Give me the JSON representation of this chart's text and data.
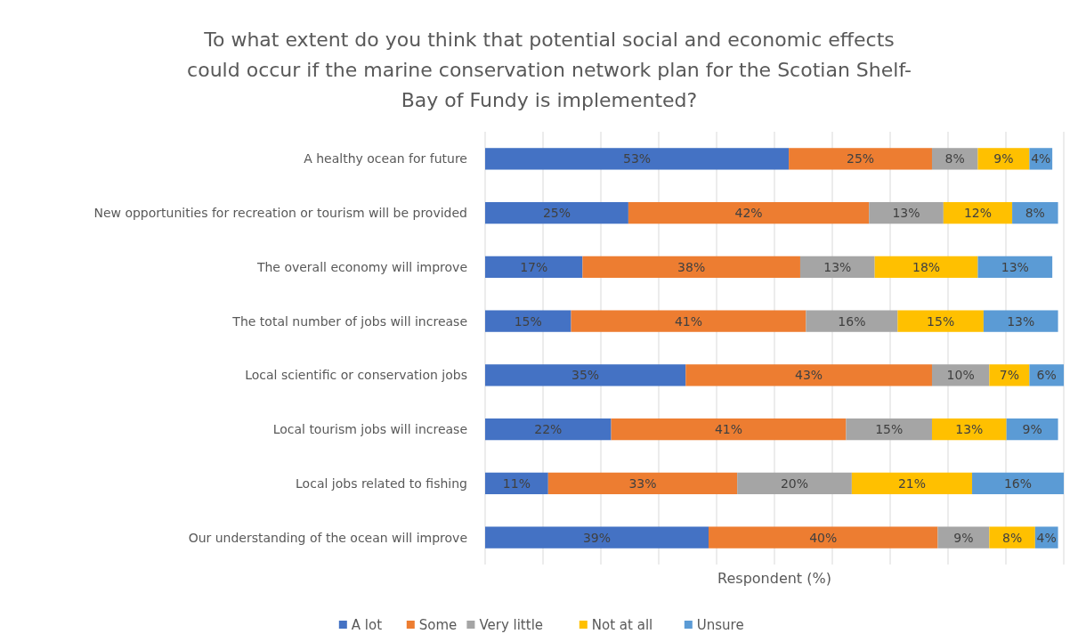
{
  "chart_data": {
    "type": "bar",
    "orientation": "horizontal",
    "stacked": true,
    "title": "To what extent do you think that potential social and economic effects could occur if the marine conservation network plan for the Scotian Shelf-Bay of Fundy is implemented?",
    "xlabel": "Respondent (%)",
    "categories": [
      "A healthy ocean for future",
      "New opportunities for recreation or tourism will be provided",
      "The overall economy will improve",
      "The total number of jobs will increase",
      "Local scientific or conservation jobs",
      "Local tourism jobs will increase",
      "Local jobs related to fishing",
      "Our understanding of the ocean will improve"
    ],
    "series": [
      {
        "name": "A lot",
        "color": "#4472c4",
        "values": [
          53,
          25,
          17,
          15,
          35,
          22,
          11,
          39
        ],
        "value_labels": [
          "53%",
          "25%",
          "17%",
          "15%",
          "35%",
          "22%",
          "11%",
          "39%"
        ]
      },
      {
        "name": "Some",
        "color": "#ed7d31",
        "values": [
          25,
          42,
          38,
          41,
          43,
          41,
          33,
          40
        ],
        "value_labels": [
          "25%",
          "42%",
          "38%",
          "41%",
          "43%",
          "41%",
          "33%",
          "40%"
        ]
      },
      {
        "name": "Very little",
        "color": "#a5a5a5",
        "values": [
          8,
          13,
          13,
          16,
          10,
          15,
          20,
          9
        ],
        "value_labels": [
          "8%",
          "13%",
          "13%",
          "16%",
          "10%",
          "15%",
          "20%",
          "9%"
        ]
      },
      {
        "name": "Not at all",
        "color": "#ffc000",
        "values": [
          9,
          12,
          18,
          15,
          7,
          13,
          21,
          8
        ],
        "value_labels": [
          "9%",
          "12%",
          "18%",
          "15%",
          "7%",
          "13%",
          "21%",
          "8%"
        ]
      },
      {
        "name": "Unsure",
        "color": "#5b9bd5",
        "values": [
          4,
          8,
          13,
          13,
          6,
          9,
          16,
          4
        ],
        "value_labels": [
          "4%",
          "8%",
          "13%",
          "13%",
          "6%",
          "9%",
          "16%",
          "4%"
        ]
      }
    ],
    "tick_labels": "y",
    "grid": "x",
    "legend": "bottom"
  }
}
